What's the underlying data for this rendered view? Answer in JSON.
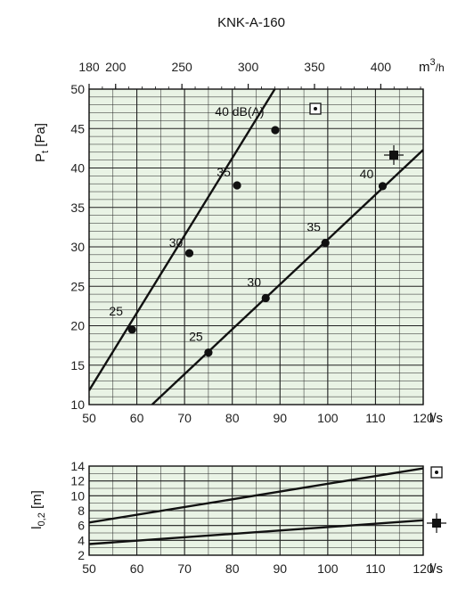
{
  "title": "KNK-A-160",
  "colors": {
    "plot_bg": "#e9f3e5",
    "line": "#111111",
    "grid": "#222222"
  },
  "chart_data": [
    {
      "type": "line",
      "xlabel": "l/s",
      "ylabel": "Pt [Pa]",
      "xlim": [
        50,
        120
      ],
      "ylim": [
        10,
        50
      ],
      "x_ticks": [
        50,
        60,
        70,
        80,
        90,
        100,
        110,
        120
      ],
      "y_ticks": [
        10,
        15,
        20,
        25,
        30,
        35,
        40,
        45,
        50
      ],
      "grid": true,
      "top_axis": {
        "label": "m³/h",
        "label_base": "m",
        "label_sup": "3",
        "label_tail": "/h",
        "ticks": [
          180,
          200,
          250,
          300,
          350,
          400
        ],
        "tick_labels": [
          "180",
          "200",
          "250",
          "300",
          "350",
          "400"
        ],
        "conversion_factor": 3.6
      },
      "series": [
        {
          "marker": "square-dot",
          "x": [
            50,
            88.9
          ],
          "y": [
            11.8,
            50
          ],
          "points": [
            {
              "x": 59,
              "y": 19.5,
              "label": "25"
            },
            {
              "x": 71,
              "y": 29.2,
              "label": "30"
            },
            {
              "x": 81,
              "y": 37.8,
              "label": "35"
            },
            {
              "x": 89,
              "y": 44.8,
              "label": "40 dB(A)"
            }
          ]
        },
        {
          "marker": "square-cross",
          "x": [
            63.2,
            120
          ],
          "y": [
            10,
            42.3
          ],
          "points": [
            {
              "x": 75,
              "y": 16.6,
              "label": "25"
            },
            {
              "x": 87,
              "y": 23.5,
              "label": "30"
            },
            {
              "x": 99.5,
              "y": 30.5,
              "label": "35"
            },
            {
              "x": 111.5,
              "y": 37.7,
              "label": "40"
            }
          ]
        }
      ]
    },
    {
      "type": "line",
      "xlabel": "l/s",
      "ylabel": "l0,2 [m]",
      "xlim": [
        50,
        120
      ],
      "ylim": [
        2,
        14
      ],
      "x_ticks": [
        50,
        60,
        70,
        80,
        90,
        100,
        110,
        120
      ],
      "y_ticks": [
        2,
        4,
        6,
        8,
        10,
        12,
        14
      ],
      "grid": true,
      "series": [
        {
          "marker": "square-dot",
          "x": [
            50,
            120
          ],
          "y": [
            6.4,
            13.7
          ]
        },
        {
          "marker": "square-cross",
          "x": [
            50,
            120
          ],
          "y": [
            3.5,
            6.7
          ]
        }
      ]
    }
  ]
}
